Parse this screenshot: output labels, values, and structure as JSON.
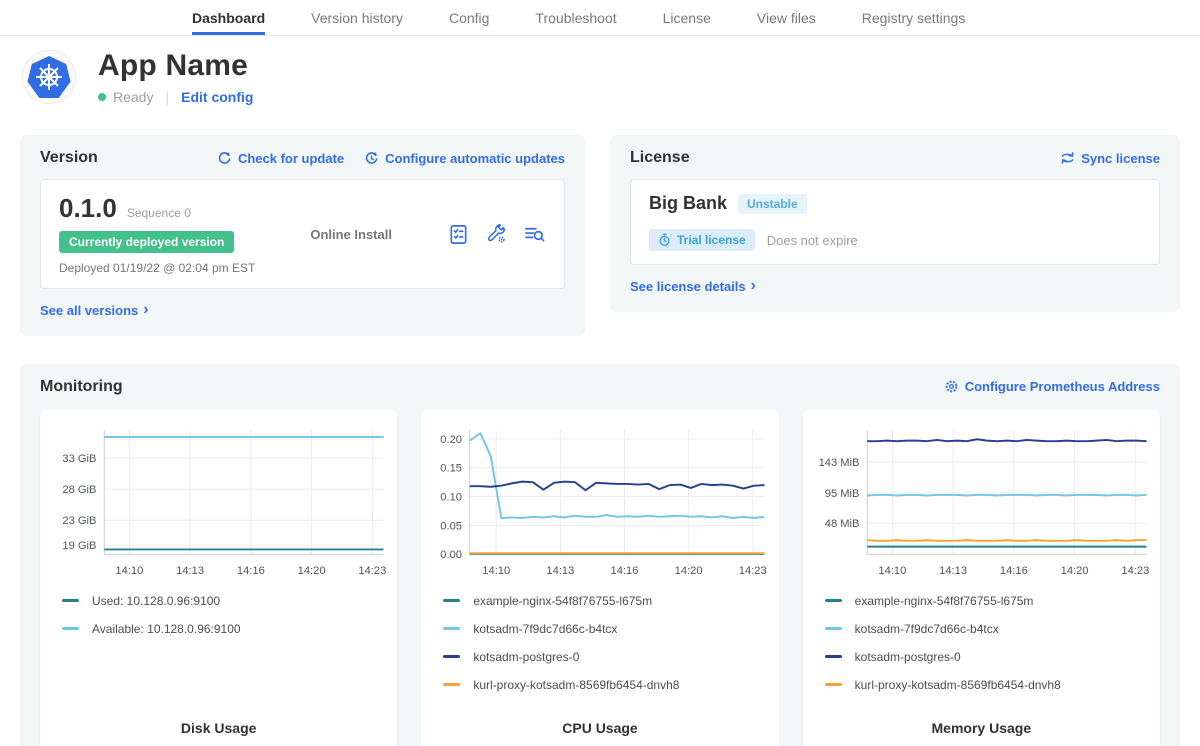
{
  "colors": {
    "accent_blue": "#326de6",
    "success_green": "#44c08c",
    "panel_bg": "#f4f7f8",
    "badge_blue_text": "#3aa3dc",
    "badge_blue_bg": "#dcedf9"
  },
  "nav": {
    "items": [
      {
        "label": "Dashboard",
        "active": true
      },
      {
        "label": "Version history",
        "active": false
      },
      {
        "label": "Config",
        "active": false
      },
      {
        "label": "Troubleshoot",
        "active": false
      },
      {
        "label": "License",
        "active": false
      },
      {
        "label": "View files",
        "active": false
      },
      {
        "label": "Registry settings",
        "active": false
      }
    ]
  },
  "header": {
    "app_name": "App Name",
    "status": "Ready",
    "edit_config": "Edit config"
  },
  "version": {
    "title": "Version",
    "check_update": "Check for update",
    "configure_auto": "Configure automatic updates",
    "number": "0.1.0",
    "sequence": "Sequence 0",
    "deployed_badge": "Currently deployed version",
    "deployed_ts": "Deployed 01/19/22 @ 02:04 pm EST",
    "install_type": "Online Install",
    "see_all": "See all versions"
  },
  "license": {
    "title": "License",
    "sync": "Sync license",
    "name": "Big Bank",
    "channel": "Unstable",
    "type_badge": "Trial license",
    "expiry": "Does not expire",
    "details": "See license details"
  },
  "monitoring": {
    "title": "Monitoring",
    "configure_link": "Configure Prometheus Address",
    "charts": [
      {
        "title": "Disk Usage",
        "type": "line",
        "x_ticks": [
          "14:10",
          "14:13",
          "14:16",
          "14:20",
          "14:23"
        ],
        "y_ticks": [
          {
            "label": "19 GiB",
            "value": 19
          },
          {
            "label": "23 GiB",
            "value": 23
          },
          {
            "label": "28 GiB",
            "value": 28
          },
          {
            "label": "33 GiB",
            "value": 33
          }
        ],
        "ymin": 17.5,
        "ymax": 37.5,
        "y_unit": "GiB",
        "series": [
          {
            "name": "Used: 10.128.0.96:9100",
            "color": "#25808e",
            "values": [
              18.3,
              18.3
            ]
          },
          {
            "name": "Available: 10.128.0.96:9100",
            "color": "#73c6e4",
            "values": [
              36.4,
              36.4
            ]
          }
        ]
      },
      {
        "title": "CPU Usage",
        "type": "line",
        "x_ticks": [
          "14:10",
          "14:13",
          "14:16",
          "14:20",
          "14:23"
        ],
        "y_ticks": [
          {
            "label": "0.00",
            "value": 0
          },
          {
            "label": "0.05",
            "value": 0.05
          },
          {
            "label": "0.10",
            "value": 0.1
          },
          {
            "label": "0.15",
            "value": 0.15
          },
          {
            "label": "0.20",
            "value": 0.2
          }
        ],
        "ymin": 0,
        "ymax": 0.215,
        "y_unit": "cores",
        "series": [
          {
            "name": "example-nginx-54f8f76755-l675m",
            "color": "#25808e",
            "values": [
              0.001,
              0.001
            ]
          },
          {
            "name": "kotsadm-7f9dc7d66c-b4tcx",
            "color": "#73c6e4",
            "values": [
              0.197,
              0.21,
              0.17,
              0.063,
              0.064,
              0.063,
              0.065,
              0.064,
              0.066,
              0.064,
              0.067,
              0.065,
              0.065,
              0.068,
              0.065,
              0.066,
              0.065,
              0.067,
              0.065,
              0.066,
              0.067,
              0.065,
              0.066,
              0.064,
              0.066,
              0.063,
              0.065,
              0.063,
              0.065
            ]
          },
          {
            "name": "kotsadm-postgres-0",
            "color": "#25418f",
            "values": [
              0.118,
              0.118,
              0.117,
              0.119,
              0.123,
              0.126,
              0.125,
              0.112,
              0.124,
              0.126,
              0.125,
              0.111,
              0.124,
              0.123,
              0.122,
              0.122,
              0.121,
              0.122,
              0.113,
              0.12,
              0.121,
              0.115,
              0.122,
              0.12,
              0.121,
              0.119,
              0.114,
              0.119,
              0.12
            ]
          },
          {
            "name": "kurl-proxy-kotsadm-8569fb6454-dnvh8",
            "color": "#f7a13c",
            "values": [
              0.002,
              0.002
            ]
          }
        ]
      },
      {
        "title": "Memory Usage",
        "type": "line",
        "x_ticks": [
          "14:10",
          "14:13",
          "14:16",
          "14:20",
          "14:23"
        ],
        "y_ticks": [
          {
            "label": "48 MiB",
            "value": 48
          },
          {
            "label": "95 MiB",
            "value": 95
          },
          {
            "label": "143 MiB",
            "value": 143
          }
        ],
        "ymin": 0,
        "ymax": 192,
        "y_unit": "MiB",
        "series": [
          {
            "name": "example-nginx-54f8f76755-l675m",
            "color": "#25808e",
            "values": [
              12,
              12
            ]
          },
          {
            "name": "kotsadm-7f9dc7d66c-b4tcx",
            "color": "#73c6e4",
            "values": [
              91,
              92,
              92,
              91,
              92,
              92,
              91,
              92,
              92,
              92,
              91,
              92,
              92,
              91,
              92,
              92,
              92,
              91,
              92,
              92,
              91,
              92,
              92,
              92,
              91,
              92,
              92,
              91,
              92
            ]
          },
          {
            "name": "kotsadm-postgres-0",
            "color": "#25418f",
            "values": [
              175,
              175,
              176,
              175,
              176,
              176,
              175,
              177,
              175,
              176,
              175,
              178,
              176,
              175,
              176,
              175,
              177,
              176,
              175,
              175,
              176,
              175,
              175,
              176,
              177,
              175,
              176,
              176,
              175
            ]
          },
          {
            "name": "kurl-proxy-kotsadm-8569fb6454-dnvh8",
            "color": "#f7a13c",
            "values": [
              22,
              21,
              21,
              22,
              21,
              21,
              22,
              21,
              21,
              21,
              22,
              21,
              21,
              21,
              22,
              21,
              21,
              22,
              21,
              21,
              21,
              22,
              21,
              21,
              21,
              22,
              21,
              22,
              22
            ]
          }
        ]
      }
    ]
  }
}
